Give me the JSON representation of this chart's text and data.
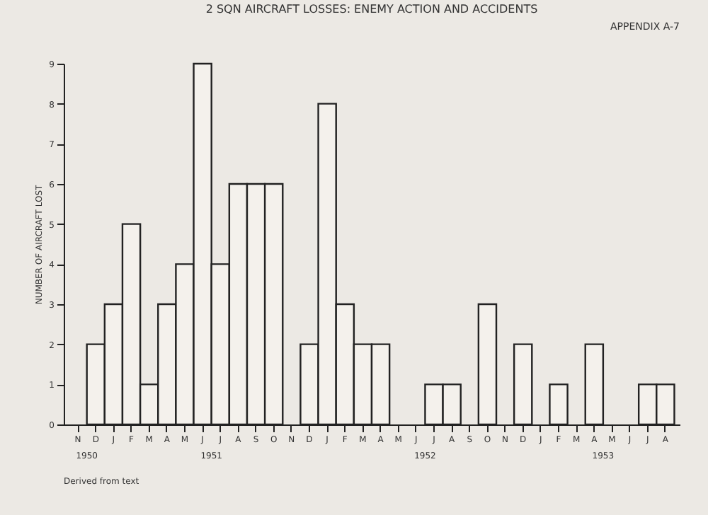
{
  "chart_data": {
    "type": "bar",
    "title": "2 SQN AIRCRAFT LOSSES: ENEMY ACTION AND ACCIDENTS",
    "ylabel": "NUMBER OF AIRCRAFT LOST",
    "categories": [
      "N",
      "D",
      "J",
      "F",
      "M",
      "A",
      "M",
      "J",
      "J",
      "A",
      "S",
      "O",
      "N",
      "D",
      "J",
      "F",
      "M",
      "A",
      "M",
      "J",
      "J",
      "A",
      "S",
      "O",
      "N",
      "D",
      "J",
      "F",
      "M",
      "A",
      "M",
      "J",
      "J",
      "A"
    ],
    "values": [
      0,
      2,
      3,
      5,
      1,
      3,
      4,
      9,
      4,
      6,
      6,
      6,
      0,
      2,
      8,
      3,
      2,
      2,
      0,
      0,
      1,
      1,
      0,
      3,
      0,
      2,
      0,
      1,
      0,
      2,
      0,
      0,
      1,
      1
    ],
    "color": "#f4f1ec",
    "ylim": [
      0,
      9
    ],
    "yticks": [
      0,
      1,
      2,
      3,
      4,
      5,
      6,
      7,
      8,
      9
    ],
    "grid": false,
    "annotations": [
      "APPENDIX A-7",
      "1950",
      "1951",
      "1952",
      "1953",
      "Derived from text"
    ]
  }
}
